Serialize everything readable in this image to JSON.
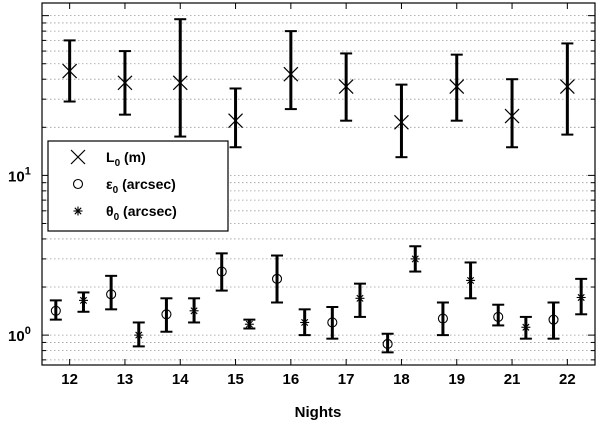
{
  "chart_data": {
    "type": "scatter",
    "xlabel": "Nights",
    "ylabel": "",
    "yscale": "log",
    "ylim": [
      0.65,
      120
    ],
    "categories": [
      "12",
      "13",
      "14",
      "15",
      "16",
      "17",
      "18",
      "19",
      "21",
      "22"
    ],
    "grid": "horizontal-dotted",
    "legend_position": "center-left",
    "y_ticks": [
      1,
      10
    ],
    "y_tick_labels": [
      {
        "base": "10",
        "exp": "0"
      },
      {
        "base": "10",
        "exp": "1"
      }
    ],
    "series": [
      {
        "name": "L",
        "name_sub": "0",
        "name_rest": " (m)",
        "marker": "x",
        "offset": 0,
        "values": [
          45,
          38,
          38,
          22,
          43,
          36,
          21.5,
          36,
          23.5,
          36
        ],
        "lower": [
          29,
          24,
          17.5,
          15,
          26,
          22,
          13,
          22,
          15,
          18
        ],
        "upper": [
          70,
          60,
          95,
          35,
          80,
          58,
          37,
          57,
          40,
          67
        ]
      },
      {
        "name": "ε",
        "name_sub": "0",
        "name_rest": " (arcsec)",
        "marker": "circle",
        "offset": -0.25,
        "values": [
          1.42,
          1.8,
          1.35,
          2.5,
          2.25,
          1.2,
          0.88,
          1.27,
          1.3,
          1.25
        ],
        "lower": [
          1.25,
          1.45,
          1.05,
          1.9,
          1.6,
          0.95,
          0.78,
          1.0,
          1.15,
          0.95
        ],
        "upper": [
          1.65,
          2.35,
          1.7,
          3.25,
          3.15,
          1.5,
          1.02,
          1.6,
          1.55,
          1.6
        ]
      },
      {
        "name": "θ",
        "name_sub": "0",
        "name_rest": " (arcsec)",
        "marker": "asterisk",
        "offset": 0.25,
        "values": [
          1.65,
          1.0,
          1.42,
          1.17,
          1.2,
          1.7,
          3.0,
          2.2,
          1.12,
          1.72
        ],
        "lower": [
          1.4,
          0.85,
          1.2,
          1.1,
          1.0,
          1.3,
          2.5,
          1.7,
          0.95,
          1.35
        ],
        "upper": [
          1.85,
          1.2,
          1.7,
          1.25,
          1.45,
          2.1,
          3.6,
          2.85,
          1.3,
          2.25
        ]
      }
    ]
  }
}
